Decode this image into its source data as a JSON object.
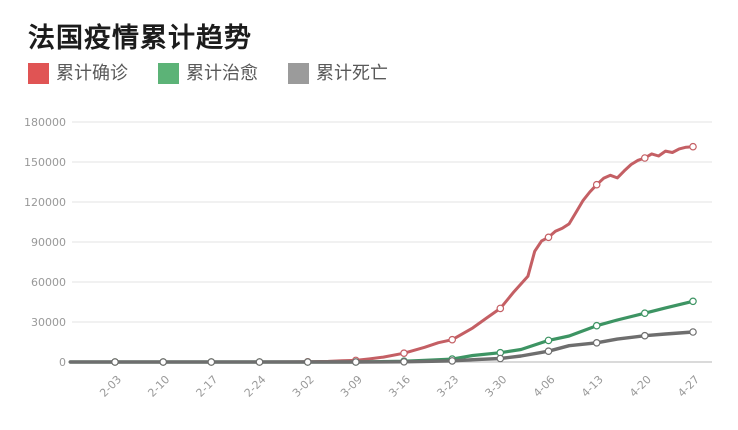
{
  "chart_data": {
    "type": "line",
    "title": "法国疫情累计趋势",
    "legend_position": "top-left",
    "grid": true,
    "background": "#ffffff",
    "x_axis": {
      "tick_labels": [
        "2-03",
        "2-10",
        "2-17",
        "2-24",
        "3-02",
        "3-09",
        "3-16",
        "3-23",
        "3-30",
        "4-06",
        "4-13",
        "4-20",
        "4-27"
      ],
      "tick_interval_days": 7,
      "label_color": "#999999",
      "label_rotation_deg": -45
    },
    "y_axis": {
      "min": 0,
      "max": 180000,
      "ticks": [
        0,
        30000,
        60000,
        90000,
        120000,
        150000,
        180000
      ],
      "label_color": "#999999",
      "gridline_color": "#e3e3e3",
      "axis_line_color": "#b5b5b5"
    },
    "marker_style": {
      "shape": "circle",
      "fill": "#ffffff"
    },
    "series": [
      {
        "id": "confirmed",
        "name": "累计确诊",
        "legend_color": "#e05454",
        "line_color": "#c45f64",
        "weekly_values": [
          11,
          11,
          12,
          14,
          130,
          1200,
          6600,
          16700,
          40200,
          93500,
          133000,
          153000,
          161500
        ],
        "detail": {
          "day_offsets": [
            -6.5,
            0,
            7,
            14,
            21,
            26,
            28,
            31,
            33,
            35,
            37,
            39,
            42,
            45,
            47,
            49,
            52,
            54,
            56,
            58,
            60,
            61,
            62,
            63,
            64,
            65,
            66,
            67,
            68,
            69,
            70,
            71,
            72,
            73,
            74,
            75,
            76,
            77,
            78,
            79,
            80,
            81,
            82,
            83,
            84
          ],
          "values": [
            3,
            11,
            11,
            12,
            14,
            100,
            130,
            420,
            950,
            1200,
            2300,
            3700,
            6600,
            11000,
            14500,
            16700,
            25600,
            33000,
            40200,
            52800,
            64300,
            83000,
            90800,
            93500,
            98000,
            100300,
            103600,
            112200,
            121000,
            127500,
            133000,
            137800,
            140000,
            138100,
            143300,
            148100,
            151300,
            153000,
            156100,
            154500,
            158200,
            157100,
            159800,
            161100,
            161500
          ]
        }
      },
      {
        "id": "cured",
        "name": "累计治愈",
        "legend_color": "#5cb377",
        "line_color": "#3d9463",
        "weekly_values": [
          2,
          2,
          4,
          11,
          12,
          12,
          600,
          2200,
          7000,
          16200,
          27200,
          36600,
          45500
        ],
        "detail": {
          "day_offsets": [
            -6.5,
            0,
            7,
            14,
            21,
            28,
            35,
            42,
            45,
            49,
            52,
            56,
            59,
            63,
            66,
            70,
            73,
            77,
            80,
            84
          ],
          "values": [
            0,
            2,
            2,
            4,
            11,
            12,
            12,
            600,
            1300,
            2200,
            4900,
            7000,
            9400,
            16200,
            19500,
            27200,
            31500,
            36600,
            40600,
            45500
          ]
        }
      },
      {
        "id": "deaths",
        "name": "累计死亡",
        "legend_color": "#9b9b9b",
        "line_color": "#6e6e6e",
        "weekly_values": [
          1,
          1,
          1,
          1,
          2,
          25,
          148,
          860,
          2600,
          8100,
          14400,
          19700,
          22500
        ],
        "detail": {
          "day_offsets": [
            -6.5,
            0,
            7,
            14,
            21,
            28,
            35,
            42,
            45,
            49,
            52,
            56,
            59,
            63,
            66,
            70,
            73,
            77,
            80,
            84
          ],
          "values": [
            0,
            1,
            1,
            1,
            1,
            2,
            25,
            148,
            450,
            860,
            1700,
            2600,
            4500,
            8100,
            12200,
            14400,
            17200,
            19700,
            21000,
            22500
          ]
        }
      }
    ]
  }
}
